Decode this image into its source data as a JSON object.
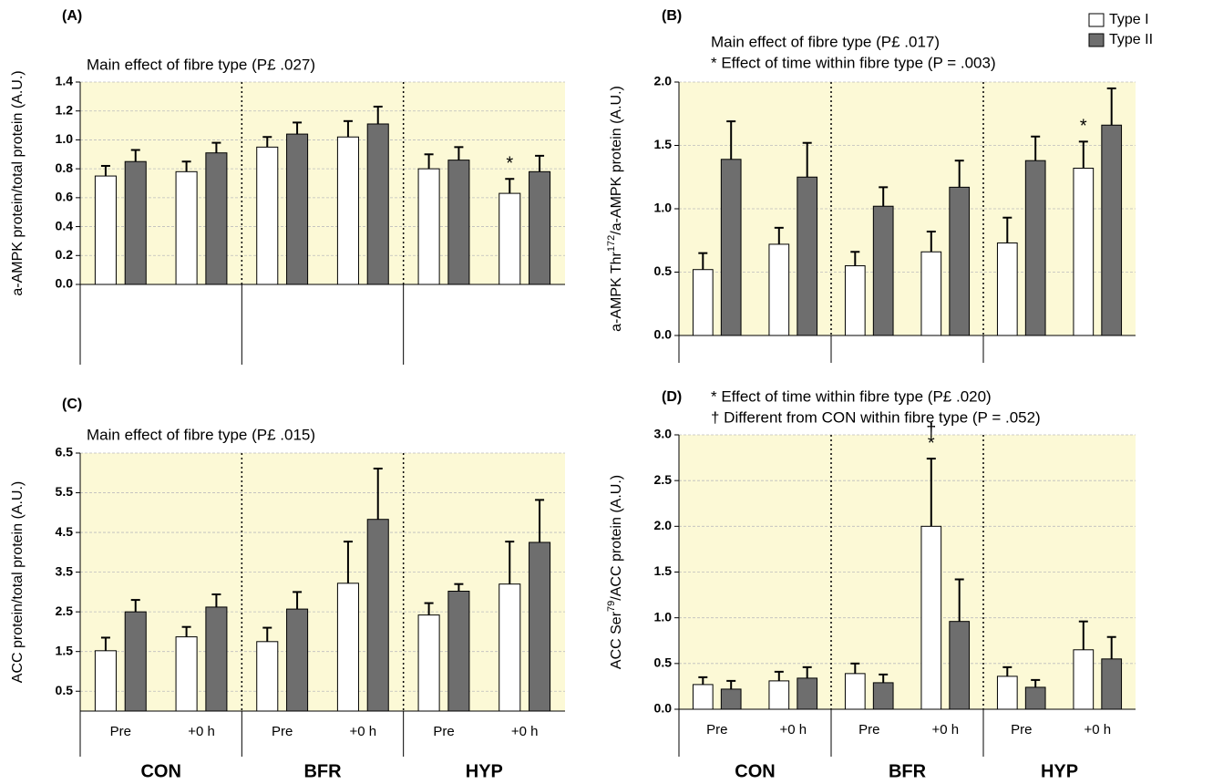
{
  "chart_data": [
    {
      "type": "bar",
      "panel": "(A)",
      "title": "Main effect of fibre type (P£ .027)",
      "ylabel": [
        {
          "text": "a-AMPK protein/total protein (A.U.)"
        }
      ],
      "categories": [
        null,
        null,
        null,
        null,
        null,
        null
      ],
      "series": [
        {
          "name": "Type I",
          "color": "#ffffff",
          "values": [
            0.75,
            0.78,
            0.95,
            1.02,
            0.8,
            0.63
          ],
          "errors": [
            0.07,
            0.07,
            0.07,
            0.11,
            0.1,
            0.1
          ]
        },
        {
          "name": "Type II",
          "color": "#6e6e6e",
          "values": [
            0.85,
            0.91,
            1.04,
            1.11,
            0.86,
            0.78
          ],
          "errors": [
            0.08,
            0.07,
            0.08,
            0.12,
            0.09,
            0.11
          ]
        }
      ],
      "ylim": [
        0,
        1.4
      ],
      "yticks": [
        {
          "value": 0,
          "label": "0.0"
        },
        0.2,
        0.4,
        0.6,
        0.8,
        {
          "value": 1,
          "label": "1.0"
        },
        1.2,
        1.4
      ],
      "grid": true,
      "annotations": [
        {
          "text": "*",
          "series": 0,
          "index": 5
        }
      ]
    },
    {
      "type": "bar",
      "panel": "(B)",
      "title": "Main effect of fibre type (P£ .017)",
      "subtitle": "* Effect of time within fibre type (P = .003)",
      "ylabel": [
        {
          "text": "a-AMPK Thr"
        },
        {
          "text": "172",
          "sup": true
        },
        {
          "text": "/a-AMPK protein (A.U.)"
        }
      ],
      "categories": [
        null,
        null,
        null,
        null,
        null,
        null
      ],
      "series": [
        {
          "name": "Type I",
          "color": "#ffffff",
          "values": [
            0.52,
            0.72,
            0.55,
            0.66,
            0.73,
            1.32
          ],
          "errors": [
            0.13,
            0.13,
            0.11,
            0.16,
            0.2,
            0.21
          ]
        },
        {
          "name": "Type II",
          "color": "#6e6e6e",
          "values": [
            1.39,
            1.25,
            1.02,
            1.17,
            1.38,
            1.66
          ],
          "errors": [
            0.3,
            0.27,
            0.15,
            0.21,
            0.19,
            0.29
          ]
        }
      ],
      "ylim": [
        0,
        2
      ],
      "yticks": [
        {
          "value": 0,
          "label": "0.0"
        },
        0.5,
        {
          "value": 1,
          "label": "1.0"
        },
        1.5,
        {
          "value": 2,
          "label": "2.0"
        }
      ],
      "grid": true,
      "legend": "upper right",
      "annotations": [
        {
          "text": "*",
          "series": 0,
          "index": 5
        }
      ]
    },
    {
      "type": "bar",
      "panel": "(C)",
      "title": "Main effect of fibre type (P£ .015)",
      "ylabel": [
        {
          "text": "ACC protein/total protein (A.U.)"
        }
      ],
      "categories": [
        "Pre",
        "+0 h",
        "Pre",
        "+0 h",
        "Pre",
        "+0 h"
      ],
      "groups": [
        "CON",
        "BFR",
        "HYP"
      ],
      "series": [
        {
          "name": "Type I",
          "color": "#ffffff",
          "values": [
            1.52,
            1.87,
            1.75,
            3.22,
            2.42,
            3.2
          ],
          "errors": [
            0.33,
            0.25,
            0.35,
            1.05,
            0.3,
            1.07
          ]
        },
        {
          "name": "Type II",
          "color": "#6e6e6e",
          "values": [
            2.5,
            2.62,
            2.57,
            4.83,
            3.02,
            4.25
          ],
          "errors": [
            0.3,
            0.32,
            0.43,
            1.28,
            0.18,
            1.07
          ]
        }
      ],
      "ylim": [
        0,
        6.5
      ],
      "yticks": [
        0.5,
        1.5,
        2.5,
        3.5,
        4.5,
        5.5,
        6.5
      ],
      "grid": true,
      "annotations": []
    },
    {
      "type": "bar",
      "panel": "(D)",
      "title": "* Effect of time within fibre type (P£ .020)",
      "subtitle": "† Different from CON within fibre type (P = .052)",
      "ylabel": [
        {
          "text": "ACC Ser"
        },
        {
          "text": "79",
          "sup": true
        },
        {
          "text": "/ACC protein (A.U.)"
        }
      ],
      "categories": [
        "Pre",
        "+0 h",
        "Pre",
        "+0 h",
        "Pre",
        "+0 h"
      ],
      "groups": [
        "CON",
        "BFR",
        "HYP"
      ],
      "series": [
        {
          "name": "Type I",
          "color": "#ffffff",
          "values": [
            0.27,
            0.31,
            0.39,
            2.0,
            0.36,
            0.65
          ],
          "errors": [
            0.08,
            0.1,
            0.11,
            0.74,
            0.1,
            0.31
          ]
        },
        {
          "name": "Type II",
          "color": "#6e6e6e",
          "values": [
            0.22,
            0.34,
            0.29,
            0.96,
            0.24,
            0.55
          ],
          "errors": [
            0.09,
            0.12,
            0.09,
            0.46,
            0.08,
            0.24
          ]
        }
      ],
      "ylim": [
        0,
        3
      ],
      "yticks": [
        {
          "value": 0,
          "label": "0.0"
        },
        0.5,
        {
          "value": 1,
          "label": "1.0"
        },
        1.5,
        {
          "value": 2,
          "label": "2.0"
        },
        2.5,
        {
          "value": 3,
          "label": "3.0"
        }
      ],
      "grid": true,
      "annotations": [
        {
          "text": "*",
          "series": 0,
          "index": 3
        },
        {
          "text": "†",
          "series": 0,
          "index": 3
        }
      ]
    }
  ]
}
